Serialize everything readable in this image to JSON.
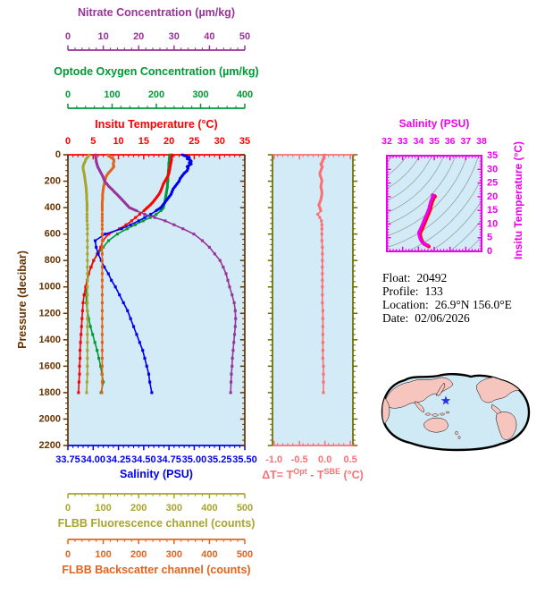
{
  "colors": {
    "background": "#FFFFFF",
    "panel_bg": "#D2EBF7",
    "nitrate": "#993399",
    "oxygen": "#009933",
    "temperature": "#FF0000",
    "pressure": "#663300",
    "salinity": "#0000EE",
    "fluorescence": "#A9A42C",
    "backscatter": "#E2641C",
    "delta_t": "#FA7175",
    "delta_frame": "#6B6B00",
    "ts_magenta": "#EE00EE",
    "ts_contour": "#9FAAAA",
    "info_text": "#000000",
    "map_land": "#F6C6BE",
    "map_ocean": "#CFE9F5",
    "map_outline": "#000000",
    "map_star": "#2936D6"
  },
  "info": {
    "float_label": "Float:",
    "float_value": "20492",
    "profile_label": "Profile:",
    "profile_value": "133",
    "location_label": "Location:",
    "location_value": "26.9°N  156.0°E",
    "date_label": "Date:",
    "date_value": "02/06/2026"
  },
  "delta_title": {
    "p1": "ΔT= T",
    "sup1": "Opt",
    "p2": " - T",
    "sup2": "SBE",
    "p3": " (°C)"
  },
  "chart_data": [
    {
      "id": "main_profile",
      "type": "line",
      "orientation": "vertical-profile",
      "y_axis": {
        "label": "Pressure (decibar)",
        "min": 0,
        "max": 2200,
        "tick_step": 200,
        "minor_step": 40,
        "tick_labels": [
          "0",
          "200",
          "400",
          "600",
          "800",
          "1000",
          "1200",
          "1400",
          "1600",
          "1800",
          "2000",
          "2200"
        ]
      },
      "x_axes": [
        {
          "id": "temperature",
          "label": "Insitu Temperature (°C)",
          "min": 0,
          "max": 35,
          "ticks": [
            0,
            5,
            10,
            15,
            20,
            25,
            30,
            35
          ],
          "labels": [
            "0",
            "5",
            "10",
            "15",
            "20",
            "25",
            "30",
            "35"
          ],
          "minor_step": 1
        },
        {
          "id": "oxygen",
          "label": "Optode Oxygen Concentration (µm/kg)",
          "min": 0,
          "max": 400,
          "ticks": [
            0,
            100,
            200,
            300,
            400
          ],
          "labels": [
            "0",
            "100",
            "200",
            "300",
            "400"
          ],
          "minor_step": 20
        },
        {
          "id": "nitrate",
          "label": "Nitrate Concentration (µm/kg)",
          "min": 0,
          "max": 50,
          "ticks": [
            0,
            10,
            20,
            30,
            40,
            50
          ],
          "labels": [
            "0",
            "10",
            "20",
            "30",
            "40",
            "50"
          ],
          "minor_step": 2
        },
        {
          "id": "salinity",
          "label": "Salinity (PSU)",
          "min": 33.75,
          "max": 35.5,
          "ticks": [
            33.75,
            34.0,
            34.25,
            34.5,
            34.75,
            35.0,
            35.25,
            35.5
          ],
          "labels": [
            "33.75",
            "34.00",
            "34.25",
            "34.50",
            "34.75",
            "35.00",
            "35.25",
            "35.50"
          ],
          "minor_step": 0.05
        },
        {
          "id": "fluorescence",
          "label": "FLBB Fluorescence channel (counts)",
          "min": 0,
          "max": 500,
          "ticks": [
            0,
            100,
            200,
            300,
            400,
            500
          ],
          "labels": [
            "0",
            "100",
            "200",
            "300",
            "400",
            "500"
          ],
          "minor_step": 20
        },
        {
          "id": "backscatter",
          "label": "FLBB Backscatter channel (counts)",
          "min": 0,
          "max": 500,
          "ticks": [
            0,
            100,
            200,
            300,
            400,
            500
          ],
          "labels": [
            "0",
            "100",
            "200",
            "300",
            "400",
            "500"
          ],
          "minor_step": 20
        }
      ],
      "pressure": [
        0,
        10,
        20,
        30,
        40,
        50,
        60,
        70,
        80,
        90,
        100,
        120,
        140,
        160,
        180,
        200,
        220,
        240,
        260,
        280,
        300,
        320,
        340,
        360,
        380,
        400,
        425,
        450,
        475,
        500,
        530,
        560,
        600,
        650,
        700,
        750,
        800,
        850,
        900,
        950,
        1000,
        1060,
        1120,
        1180,
        1240,
        1300,
        1360,
        1420,
        1480,
        1540,
        1600,
        1660,
        1720,
        1800
      ],
      "series": [
        {
          "name": "oxygen",
          "axis": "oxygen",
          "values": [
            230,
            230,
            230,
            229,
            229,
            229,
            228,
            228,
            228,
            228,
            228,
            227,
            227,
            226,
            226,
            226,
            225,
            225,
            224,
            223,
            222,
            221,
            220,
            219,
            217,
            216,
            210,
            200,
            186,
            170,
            152,
            134,
            112,
            92,
            80,
            68,
            58,
            52,
            47,
            44,
            42,
            41,
            42,
            44,
            47,
            51,
            56,
            61,
            66,
            70,
            74,
            77,
            80,
            75
          ]
        },
        {
          "name": "temperature",
          "axis": "temperature",
          "values": [
            20.6,
            20.6,
            20.5,
            20.5,
            20.5,
            20.4,
            20.4,
            20.3,
            20.3,
            20.2,
            20.2,
            20.1,
            20.0,
            19.8,
            19.5,
            19.2,
            18.9,
            18.7,
            18.5,
            18.3,
            18.0,
            17.6,
            17.2,
            16.8,
            16.3,
            15.7,
            15.0,
            14.2,
            13.4,
            12.6,
            11.5,
            10.2,
            8.1,
            6.9,
            6.5,
            5.8,
            5.1,
            4.6,
            4.1,
            3.8,
            3.5,
            3.2,
            3.0,
            2.9,
            2.8,
            2.7,
            2.6,
            2.5,
            2.4,
            2.4,
            2.3,
            2.3,
            2.2,
            2.1
          ]
        },
        {
          "name": "salinity",
          "axis": "salinity",
          "values": [
            34.88,
            34.92,
            34.95,
            34.93,
            34.96,
            34.97,
            34.95,
            34.97,
            34.95,
            34.93,
            34.94,
            34.93,
            34.9,
            34.88,
            34.86,
            34.85,
            34.83,
            34.81,
            34.79,
            34.78,
            34.77,
            34.75,
            34.73,
            34.71,
            34.69,
            34.67,
            34.62,
            34.57,
            34.51,
            34.45,
            34.37,
            34.28,
            34.12,
            34.02,
            34.03,
            34.05,
            34.08,
            34.11,
            34.15,
            34.18,
            34.22,
            34.26,
            34.3,
            34.34,
            34.37,
            34.4,
            34.43,
            34.46,
            34.49,
            34.51,
            34.53,
            34.55,
            34.56,
            34.58
          ]
        },
        {
          "name": "fluorescence",
          "axis": "fluorescence",
          "values": [
            60,
            58,
            55,
            52,
            50,
            49,
            47,
            45,
            44,
            43,
            43,
            44,
            46,
            47,
            48,
            49,
            50,
            51,
            52,
            52,
            53,
            53,
            53,
            54,
            54,
            54,
            54,
            54,
            54,
            54,
            55,
            55,
            55,
            55,
            55,
            55,
            55,
            55,
            55,
            55,
            55,
            55,
            55,
            55,
            55,
            55,
            55,
            55,
            55,
            55,
            55,
            55,
            54,
            53
          ]
        },
        {
          "name": "backscatter",
          "axis": "backscatter",
          "values": [
            112,
            116,
            122,
            127,
            130,
            130,
            129,
            128,
            129,
            130,
            127,
            121,
            114,
            109,
            106,
            104,
            103,
            101,
            100,
            99,
            98,
            98,
            98,
            97,
            97,
            97,
            97,
            97,
            97,
            97,
            97,
            97,
            97,
            97,
            97,
            97,
            97,
            97,
            97,
            97,
            97,
            97,
            97,
            97,
            97,
            97,
            97,
            97,
            97,
            97,
            97,
            97,
            97,
            96
          ]
        },
        {
          "name": "nitrate",
          "axis": "nitrate",
          "values": [
            7.8,
            7.8,
            7.9,
            7.9,
            8.0,
            8.0,
            8.1,
            8.2,
            8.3,
            8.4,
            8.6,
            9.0,
            9.4,
            9.8,
            10.1,
            10.4,
            11.0,
            11.6,
            12.4,
            13.1,
            13.9,
            14.6,
            15.3,
            16.0,
            16.7,
            17.4,
            19.5,
            21.7,
            24.6,
            27.5,
            30.0,
            32.5,
            35.6,
            38.0,
            40.0,
            41.5,
            43.0,
            43.9,
            44.7,
            45.2,
            45.7,
            46.4,
            47.0,
            47.3,
            47.4,
            47.3,
            47.1,
            46.9,
            46.7,
            46.5,
            46.4,
            46.2,
            46.1,
            46.0
          ]
        }
      ]
    },
    {
      "id": "delta_t_panel",
      "type": "line",
      "x_axis": {
        "label": "ΔT= TOpt - TSBE (°C)",
        "min": -1.03,
        "max": 0.55,
        "ticks": [
          -1.0,
          -0.5,
          0.0,
          0.5
        ],
        "labels": [
          "-1.0",
          "-0.5",
          "0.0",
          "0.5"
        ],
        "minor_step": 0.1
      },
      "uses_pressure_of": "main_profile",
      "values": [
        -0.01,
        -0.02,
        -0.02,
        -0.03,
        -0.04,
        -0.05,
        -0.06,
        -0.08,
        -0.07,
        -0.05,
        -0.06,
        -0.08,
        -0.1,
        -0.09,
        -0.07,
        -0.06,
        -0.07,
        -0.08,
        -0.07,
        -0.06,
        -0.06,
        -0.07,
        -0.08,
        -0.1,
        -0.12,
        -0.1,
        -0.08,
        -0.14,
        -0.1,
        -0.07,
        -0.06,
        -0.06,
        -0.06,
        -0.06,
        -0.05,
        -0.05,
        -0.05,
        -0.05,
        -0.05,
        -0.05,
        -0.05,
        -0.05,
        -0.05,
        -0.04,
        -0.04,
        -0.04,
        -0.04,
        -0.04,
        -0.04,
        -0.04,
        -0.03,
        -0.03,
        -0.03,
        -0.03
      ]
    },
    {
      "id": "ts_diagram",
      "type": "line",
      "x_axis": {
        "label": "Salinity (PSU)",
        "min": 32,
        "max": 38,
        "ticks": [
          32,
          33,
          34,
          35,
          36,
          37,
          38
        ],
        "labels": [
          "32",
          "33",
          "34",
          "35",
          "36",
          "37",
          "38"
        ],
        "minor_step": 0.2
      },
      "y_axis": {
        "label": "Insitu Temperature (°C)",
        "min": 0,
        "max": 35,
        "ticks": [
          0,
          5,
          10,
          15,
          20,
          25,
          30,
          35
        ],
        "labels": [
          "0",
          "5",
          "10",
          "15",
          "20",
          "25",
          "30",
          "35"
        ],
        "minor_step": 1
      },
      "series_from": [
        "salinity",
        "temperature"
      ],
      "isopycnal_contours": true
    },
    {
      "id": "locator_map",
      "type": "map",
      "star_location": {
        "lat": "26.9°N",
        "lon": "156.0°E"
      }
    }
  ]
}
